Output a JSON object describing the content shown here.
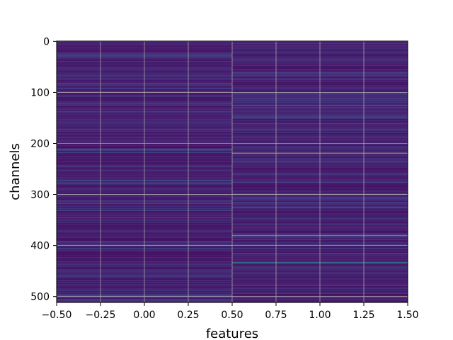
{
  "chart_data": {
    "type": "heatmap",
    "title": "",
    "xlabel": "features",
    "ylabel": "channels",
    "xlim": [
      -0.5,
      1.5
    ],
    "ylim": [
      511.5,
      -0.5
    ],
    "x_inverted": false,
    "y_inverted": true,
    "columns": [
      0,
      1
    ],
    "rows": 512,
    "colormap": "viridis",
    "grid": true,
    "xticks": [
      -0.5,
      -0.25,
      0.0,
      0.25,
      0.5,
      0.75,
      1.0,
      1.25,
      1.5
    ],
    "xtick_labels": [
      "−0.50",
      "−0.25",
      "0.00",
      "0.25",
      "0.50",
      "0.75",
      "1.00",
      "1.25",
      "1.50"
    ],
    "yticks": [
      0,
      100,
      200,
      300,
      400,
      500
    ],
    "ytick_labels": [
      "0",
      "100",
      "200",
      "300",
      "400",
      "500"
    ],
    "highlight_bands": [
      {
        "column": 0,
        "row": 27,
        "value": 0.35
      },
      {
        "column": 0,
        "row": 125,
        "value": 0.3
      },
      {
        "column": 0,
        "row": 213,
        "value": 0.45
      },
      {
        "column": 0,
        "row": 218,
        "value": 0.35
      },
      {
        "column": 0,
        "row": 272,
        "value": 0.4
      },
      {
        "column": 0,
        "row": 278,
        "value": 0.35
      },
      {
        "column": 0,
        "row": 318,
        "value": 0.35
      },
      {
        "column": 0,
        "row": 332,
        "value": 0.3
      },
      {
        "column": 0,
        "row": 392,
        "value": 0.3
      },
      {
        "column": 0,
        "row": 405,
        "value": 0.3
      },
      {
        "column": 0,
        "row": 460,
        "value": 0.3
      },
      {
        "column": 0,
        "row": 497,
        "value": 0.35
      },
      {
        "column": 1,
        "row": 35,
        "value": 0.45
      },
      {
        "column": 1,
        "row": 125,
        "value": 0.4
      },
      {
        "column": 1,
        "row": 148,
        "value": 0.5
      },
      {
        "column": 1,
        "row": 172,
        "value": 0.45
      },
      {
        "column": 1,
        "row": 219,
        "value": 0.95
      },
      {
        "column": 1,
        "row": 325,
        "value": 0.35
      },
      {
        "column": 1,
        "row": 380,
        "value": 0.8
      },
      {
        "column": 1,
        "row": 433,
        "value": 0.55
      },
      {
        "column": 1,
        "row": 436,
        "value": 0.5
      },
      {
        "column": 1,
        "row": 478,
        "value": 0.4
      }
    ]
  }
}
